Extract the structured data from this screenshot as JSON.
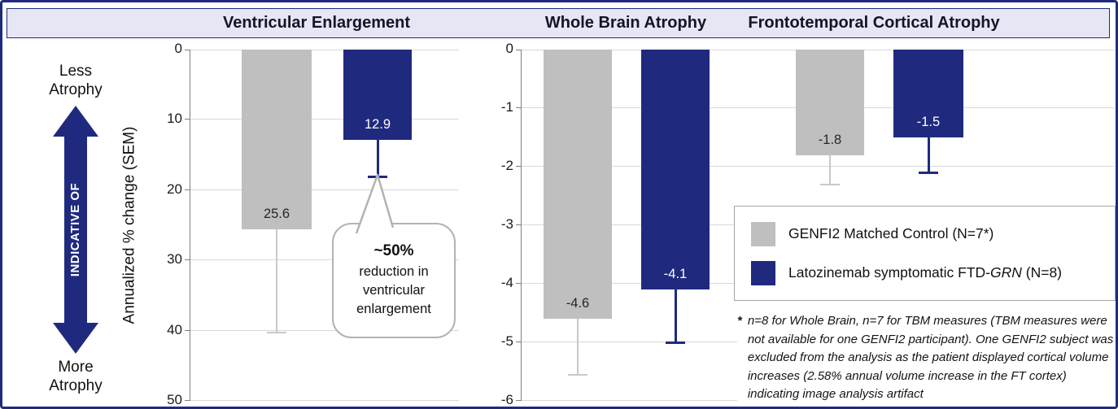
{
  "header": {
    "title_left": "Ventricular Enlargement",
    "title_mid": "Whole Brain Atrophy",
    "title_right": "Frontotemporal Cortical Atrophy"
  },
  "side": {
    "less": "Less Atrophy",
    "more": "More Atrophy",
    "arrow": "INDICATIVE OF",
    "ylabel": "Annualized % change (SEM)"
  },
  "chart_data": [
    {
      "type": "bar",
      "title": "Ventricular Enlargement",
      "ylabel": "Annualized % change (SEM)",
      "ylim": [
        0,
        50
      ],
      "yticks": [
        0,
        10,
        20,
        30,
        40,
        50
      ],
      "y_increases_downward": true,
      "grid": true,
      "categories": [
        "Ventricular Enlargement"
      ],
      "series": [
        {
          "name": "GENFI2 Matched Control (N=7*)",
          "values": [
            25.6
          ],
          "errors_to": [
            40.3
          ]
        },
        {
          "name": "Latozinemab symptomatic FTD-GRN (N=8)",
          "values": [
            12.9
          ],
          "errors_to": [
            18.0
          ]
        }
      ]
    },
    {
      "type": "bar",
      "title": "Whole Brain Atrophy / Frontotemporal Cortical Atrophy",
      "ylabel": "Annualized % change (SEM)",
      "ylim": [
        0,
        -6
      ],
      "yticks": [
        0,
        -1,
        -2,
        -3,
        -4,
        -5,
        -6
      ],
      "y_increases_downward": true,
      "grid": true,
      "categories": [
        "Whole Brain Atrophy",
        "Frontotemporal Cortical Atrophy"
      ],
      "series": [
        {
          "name": "GENFI2 Matched Control (N=7*)",
          "values": [
            -4.6,
            -1.8
          ],
          "errors_to": [
            -5.55,
            -2.3
          ]
        },
        {
          "name": "Latozinemab symptomatic FTD-GRN (N=8)",
          "values": [
            -4.1,
            -1.5
          ],
          "errors_to": [
            -5.0,
            -2.1
          ]
        }
      ]
    }
  ],
  "callout": {
    "headline": "~50%",
    "body": "reduction in ventricular enlargement"
  },
  "legend": {
    "item1": "GENFI2 Matched Control (N=7*)",
    "item2_pre": "Latozinemab symptomatic FTD-",
    "item2_italic": "GRN",
    "item2_post": " (N=8)"
  },
  "footnote": {
    "marker": "*",
    "text": "n=8 for Whole Brain, n=7 for TBM measures (TBM measures were not available for one GENFI2 participant). One GENFI2 subject was excluded from the analysis as the patient displayed cortical volume increases (2.58% annual volume increase in the FT cortex) indicating image analysis artifact"
  },
  "colors": {
    "navy": "#1f2a7e",
    "gray_bar": "#bfbfbf",
    "gray_error": "#c9c9c9",
    "header_bg": "#e6e6f5",
    "grid": "#d9d9d9"
  }
}
